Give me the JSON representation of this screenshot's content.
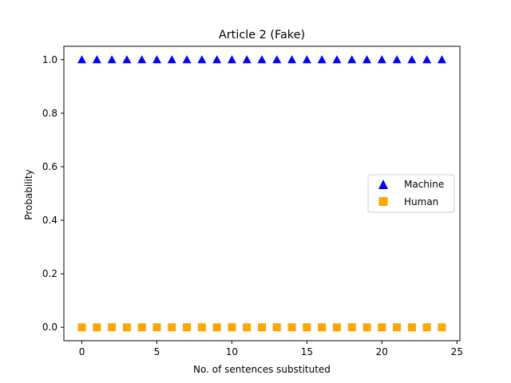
{
  "chart_data": {
    "type": "scatter",
    "title": "Article 2 (Fake)",
    "xlabel": "No. of sentences substituted",
    "ylabel": "Probability",
    "xlim": [
      -1.2,
      25.2
    ],
    "ylim": [
      -0.05,
      1.05
    ],
    "xticks": [
      0,
      5,
      10,
      15,
      20,
      25
    ],
    "xtick_labels": [
      "0",
      "5",
      "10",
      "15",
      "20",
      "25"
    ],
    "yticks": [
      0.0,
      0.2,
      0.4,
      0.6,
      0.8,
      1.0
    ],
    "ytick_labels": [
      "0.0",
      "0.2",
      "0.4",
      "0.6",
      "0.8",
      "1.0"
    ],
    "grid": false,
    "legend_position": "center-right",
    "x": [
      0,
      1,
      2,
      3,
      4,
      5,
      6,
      7,
      8,
      9,
      10,
      11,
      12,
      13,
      14,
      15,
      16,
      17,
      18,
      19,
      20,
      21,
      22,
      23,
      24
    ],
    "series": [
      {
        "name": "Machine",
        "marker": "triangle",
        "color": "#0000ff",
        "values": [
          1,
          1,
          1,
          1,
          1,
          1,
          1,
          1,
          1,
          1,
          1,
          1,
          1,
          1,
          1,
          1,
          1,
          1,
          1,
          1,
          1,
          1,
          1,
          1,
          1
        ]
      },
      {
        "name": "Human",
        "marker": "square",
        "color": "#ffa500",
        "values": [
          0,
          0,
          0,
          0,
          0,
          0,
          0,
          0,
          0,
          0,
          0,
          0,
          0,
          0,
          0,
          0,
          0,
          0,
          0,
          0,
          0,
          0,
          0,
          0,
          0
        ]
      }
    ]
  }
}
